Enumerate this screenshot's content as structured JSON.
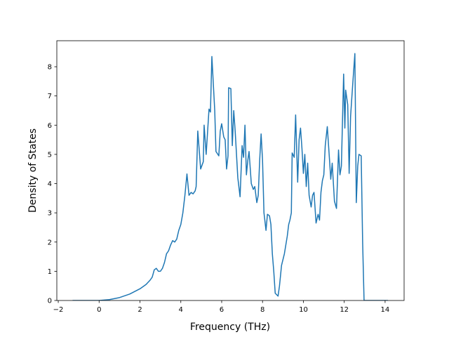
{
  "chart_data": {
    "type": "line",
    "x_label": "Frequency (THz)",
    "y_label": "Density of States",
    "color": "#1f77b4",
    "x": [
      -1.3,
      0,
      0.5,
      1,
      1.5,
      2,
      2.3,
      2.5,
      2.6,
      2.7,
      2.8,
      2.9,
      3.0,
      3.1,
      3.2,
      3.3,
      3.4,
      3.5,
      3.6,
      3.7,
      3.8,
      3.9,
      4.0,
      4.1,
      4.2,
      4.3,
      4.4,
      4.5,
      4.6,
      4.7,
      4.75,
      4.83,
      4.97,
      5.1,
      5.14,
      5.24,
      5.38,
      5.45,
      5.52,
      5.66,
      5.72,
      5.86,
      5.93,
      6.0,
      6.1,
      6.17,
      6.24,
      6.31,
      6.34,
      6.45,
      6.52,
      6.59,
      6.66,
      6.79,
      6.9,
      7.0,
      7.07,
      7.14,
      7.21,
      7.28,
      7.34,
      7.45,
      7.55,
      7.62,
      7.72,
      7.79,
      7.86,
      7.93,
      8.0,
      8.07,
      8.17,
      8.24,
      8.34,
      8.41,
      8.48,
      8.55,
      8.62,
      8.76,
      8.83,
      8.93,
      9.07,
      9.21,
      9.28,
      9.34,
      9.41,
      9.45,
      9.55,
      9.62,
      9.72,
      9.79,
      9.86,
      9.93,
      10.0,
      10.07,
      10.14,
      10.21,
      10.28,
      10.38,
      10.45,
      10.52,
      10.62,
      10.72,
      10.79,
      10.86,
      10.93,
      11.0,
      11.07,
      11.17,
      11.28,
      11.34,
      11.41,
      11.52,
      11.62,
      11.72,
      11.79,
      11.86,
      11.97,
      12.03,
      12.07,
      12.17,
      12.24,
      12.31,
      12.41,
      12.52,
      12.59,
      12.66,
      12.72,
      12.83,
      12.9,
      12.97,
      14.14
    ],
    "values": [
      0,
      0,
      0.03,
      0.1,
      0.22,
      0.4,
      0.55,
      0.7,
      0.8,
      1.05,
      1.1,
      1.0,
      1.0,
      1.1,
      1.3,
      1.6,
      1.7,
      1.9,
      2.05,
      2.0,
      2.1,
      2.4,
      2.6,
      3.0,
      3.6,
      4.33,
      3.6,
      3.7,
      3.65,
      3.75,
      3.9,
      5.8,
      4.5,
      4.75,
      6.0,
      5.0,
      6.55,
      6.45,
      8.35,
      6.5,
      5.1,
      4.95,
      5.8,
      6.05,
      5.6,
      5.5,
      4.5,
      4.95,
      7.28,
      7.25,
      5.3,
      6.5,
      5.8,
      4.2,
      3.55,
      5.3,
      4.9,
      6.0,
      4.3,
      4.8,
      5.1,
      4.0,
      3.8,
      3.9,
      3.35,
      3.6,
      4.8,
      5.7,
      4.8,
      3.0,
      2.4,
      2.95,
      2.9,
      2.6,
      1.6,
      1.0,
      0.25,
      0.15,
      0.5,
      1.2,
      1.6,
      2.2,
      2.6,
      2.75,
      3.0,
      5.05,
      4.9,
      6.35,
      4.05,
      5.5,
      5.9,
      5.2,
      4.35,
      5.0,
      3.9,
      4.7,
      3.6,
      3.2,
      3.6,
      3.7,
      2.65,
      2.95,
      2.75,
      3.7,
      4.1,
      4.3,
      5.3,
      5.95,
      4.8,
      4.15,
      4.7,
      3.4,
      3.15,
      5.15,
      4.3,
      4.6,
      7.75,
      5.9,
      7.2,
      6.7,
      4.35,
      6.3,
      7.35,
      8.45,
      3.35,
      4.6,
      5.0,
      4.95,
      2.0,
      0,
      0
    ],
    "xlim": [
      -2.07,
      14.93
    ],
    "ylim": [
      0,
      8.89
    ],
    "xticks": [
      {
        "value": -2,
        "label": "−2"
      },
      0,
      2,
      4,
      6,
      8,
      10,
      12,
      14
    ],
    "yticks": [
      0,
      1,
      2,
      3,
      4,
      5,
      6,
      7,
      8
    ]
  }
}
